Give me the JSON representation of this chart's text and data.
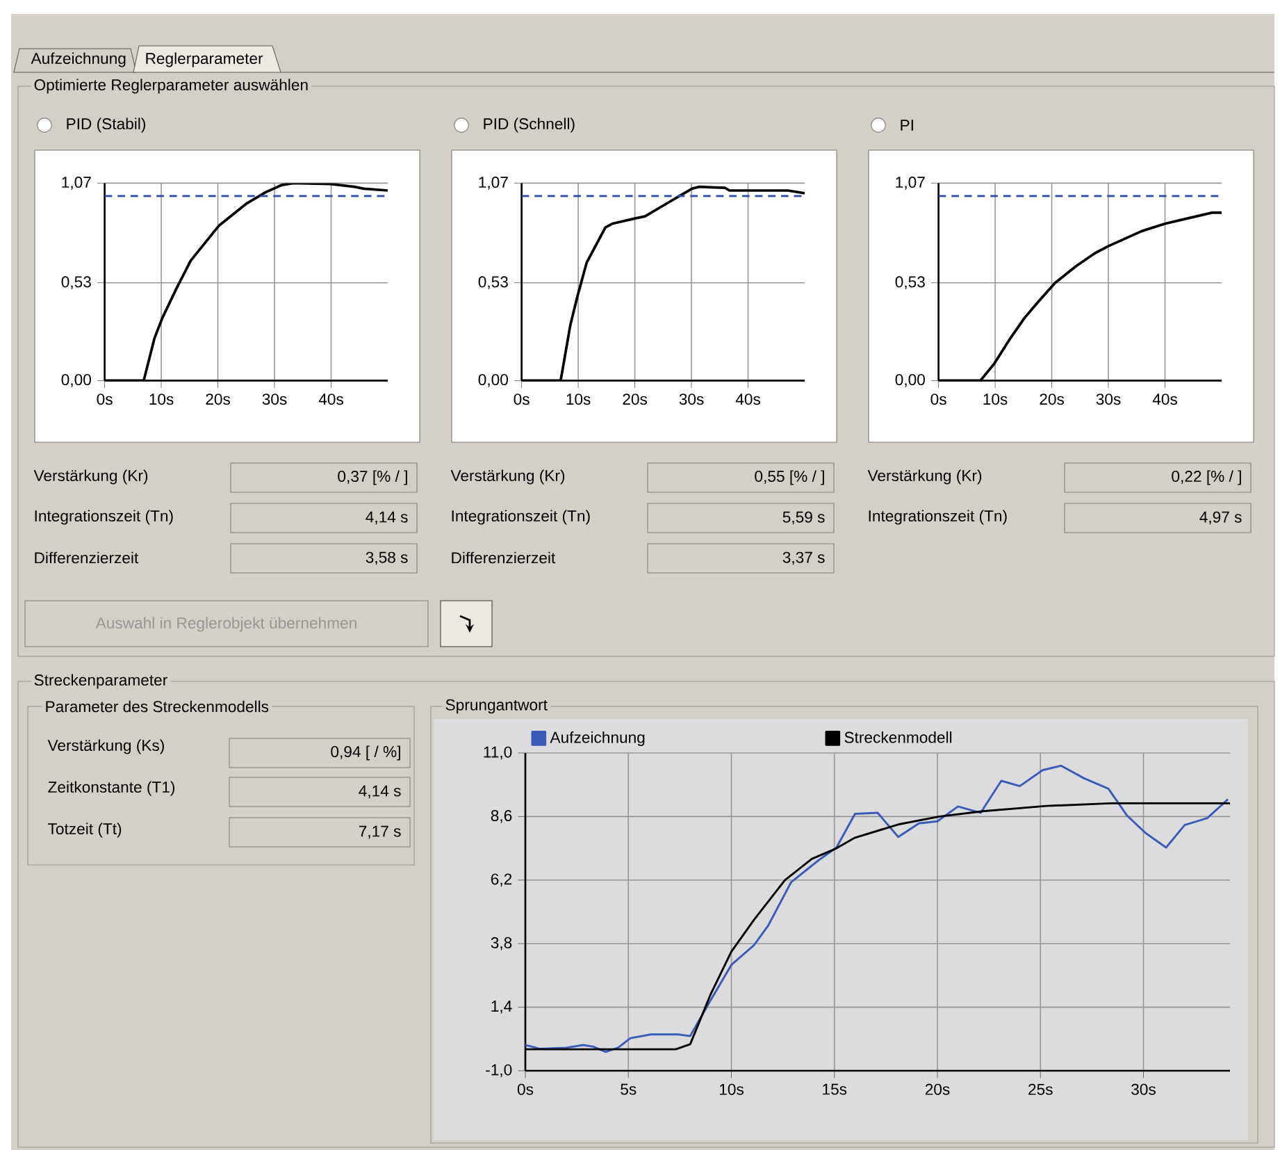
{
  "chart_data": [
    {
      "type": "line",
      "title": "PID (Stabil)",
      "xlim": [
        0,
        50
      ],
      "xticks": [
        {
          "value": 0,
          "label": "0s"
        },
        {
          "value": 10,
          "label": "10s"
        },
        {
          "value": 20,
          "label": "20s"
        },
        {
          "value": 30,
          "label": "30s"
        },
        {
          "value": 40,
          "label": "40s"
        }
      ],
      "ylim": [
        0,
        1.07
      ],
      "yticks": [
        {
          "value": 0,
          "label": "0,00"
        },
        {
          "value": 0.53,
          "label": "0,53"
        },
        {
          "value": 1.07,
          "label": "1,07"
        }
      ],
      "grid": true,
      "ref_lines": [
        {
          "axis": "y",
          "value": 1.0,
          "color": "#2e4ea8",
          "line_style": "dashed"
        }
      ],
      "series": [
        {
          "color": "#000000",
          "x": [
            0,
            6.9,
            8.8,
            10.2,
            12.7,
            15.2,
            20.2,
            25.1,
            28.4,
            31.3,
            33.4,
            39.9,
            44.1,
            45.8,
            50
          ],
          "values": [
            0,
            0,
            0.23,
            0.34,
            0.5,
            0.65,
            0.84,
            0.96,
            1.02,
            1.06,
            1.07,
            1.065,
            1.05,
            1.04,
            1.03
          ]
        }
      ],
      "annotations": [
        "Verstärkung (Kr)",
        "0,37  [% / ]",
        "Integrationszeit (Tn)",
        "4,14  s",
        "Differenzierzeit",
        "3,58  s"
      ]
    },
    {
      "type": "line",
      "title": "PID (Schnell)",
      "xlim": [
        0,
        50
      ],
      "xticks": [
        {
          "value": 0,
          "label": "0s"
        },
        {
          "value": 10,
          "label": "10s"
        },
        {
          "value": 20,
          "label": "20s"
        },
        {
          "value": 30,
          "label": "30s"
        },
        {
          "value": 40,
          "label": "40s"
        }
      ],
      "ylim": [
        0,
        1.07
      ],
      "yticks": [
        {
          "value": 0,
          "label": "0,00"
        },
        {
          "value": 0.53,
          "label": "0,53"
        },
        {
          "value": 1.07,
          "label": "1,07"
        }
      ],
      "grid": true,
      "ref_lines": [
        {
          "axis": "y",
          "value": 1.0,
          "color": "#2e4ea8",
          "line_style": "dashed"
        }
      ],
      "series": [
        {
          "color": "#000000",
          "x": [
            0,
            6.9,
            8.6,
            9.8,
            11.5,
            14.8,
            16.0,
            20.2,
            21.8,
            25.1,
            28.4,
            30.1,
            31.3,
            35.9,
            36.7,
            47,
            50
          ],
          "values": [
            0,
            0,
            0.3,
            0.45,
            0.64,
            0.83,
            0.85,
            0.88,
            0.89,
            0.95,
            1.01,
            1.04,
            1.05,
            1.045,
            1.03,
            1.03,
            1.015
          ]
        }
      ],
      "annotations": [
        "Verstärkung (Kr)",
        "0,55  [% / ]",
        "Integrationszeit (Tn)",
        "5,59  s",
        "Differenzierzeit",
        "3,37  s"
      ]
    },
    {
      "type": "line",
      "title": "PI",
      "xlim": [
        0,
        50
      ],
      "xticks": [
        {
          "value": 0,
          "label": "0s"
        },
        {
          "value": 10,
          "label": "10s"
        },
        {
          "value": 20,
          "label": "20s"
        },
        {
          "value": 30,
          "label": "30s"
        },
        {
          "value": 40,
          "label": "40s"
        }
      ],
      "ylim": [
        0,
        1.07
      ],
      "yticks": [
        {
          "value": 0,
          "label": "0,00"
        },
        {
          "value": 0.53,
          "label": "0,53"
        },
        {
          "value": 1.07,
          "label": "1,07"
        }
      ],
      "grid": true,
      "ref_lines": [
        {
          "axis": "y",
          "value": 1.0,
          "color": "#2e4ea8",
          "line_style": "dashed"
        }
      ],
      "series": [
        {
          "color": "#000000",
          "x": [
            0,
            7.4,
            9.8,
            12.7,
            15.2,
            17.7,
            20.6,
            24.3,
            27.6,
            30.1,
            35.9,
            40,
            44.1,
            48.3,
            50
          ],
          "values": [
            0,
            0,
            0.09,
            0.23,
            0.34,
            0.43,
            0.53,
            0.62,
            0.69,
            0.73,
            0.81,
            0.85,
            0.88,
            0.91,
            0.91
          ]
        }
      ],
      "annotations": [
        "Verstärkung (Kr)",
        "0,22  [% / ]",
        "Integrationszeit (Tn)",
        "4,97  s"
      ]
    },
    {
      "type": "line",
      "title": "Sprungantwort",
      "xlim": [
        0,
        34.2
      ],
      "xticks": [
        {
          "value": 0,
          "label": "0s"
        },
        {
          "value": 5,
          "label": "5s"
        },
        {
          "value": 10,
          "label": "10s"
        },
        {
          "value": 15,
          "label": "15s"
        },
        {
          "value": 20,
          "label": "20s"
        },
        {
          "value": 25,
          "label": "25s"
        },
        {
          "value": 30,
          "label": "30s"
        }
      ],
      "ylim": [
        -1,
        11
      ],
      "yticks": [
        {
          "value": -1,
          "label": "-1,0"
        },
        {
          "value": 1.4,
          "label": "1,4"
        },
        {
          "value": 3.8,
          "label": "3,8"
        },
        {
          "value": 6.2,
          "label": "6,2"
        },
        {
          "value": 8.6,
          "label": "8,6"
        },
        {
          "value": 11,
          "label": "11,0"
        }
      ],
      "grid": true,
      "legend": "top",
      "series": [
        {
          "name": "Aufzeichnung",
          "color": "#3a5cb8",
          "x": [
            0,
            0.7,
            2.0,
            2.8,
            3.3,
            3.9,
            4.5,
            5.1,
            6.1,
            7.4,
            8.0,
            9.0,
            10.0,
            11.1,
            11.8,
            12.9,
            14.2,
            15.1,
            16.0,
            17.1,
            18.1,
            19.1,
            20.0,
            21.0,
            22.1,
            23.1,
            24.0,
            25.1,
            26.0,
            27.1,
            28.3,
            29.2,
            30.1,
            31.1,
            32.0,
            33.1,
            34.1
          ],
          "values": [
            -0.03,
            -0.17,
            -0.13,
            -0.03,
            -0.09,
            -0.29,
            -0.13,
            0.23,
            0.37,
            0.37,
            0.31,
            1.67,
            3.0,
            3.74,
            4.5,
            6.12,
            6.93,
            7.43,
            8.7,
            8.74,
            7.83,
            8.34,
            8.42,
            8.98,
            8.74,
            9.95,
            9.75,
            10.35,
            10.52,
            10.05,
            9.65,
            8.64,
            7.98,
            7.43,
            8.28,
            8.54,
            9.25
          ]
        },
        {
          "name": "Streckenmodell",
          "color": "#000000",
          "x": [
            0,
            7.3,
            8.0,
            9.0,
            10.0,
            11.1,
            12.6,
            13.9,
            15.1,
            16.0,
            18.1,
            20.1,
            22.2,
            25.3,
            28.4,
            34.2
          ],
          "values": [
            -0.19,
            -0.19,
            0.0,
            1.9,
            3.5,
            4.7,
            6.2,
            7.0,
            7.4,
            7.8,
            8.3,
            8.6,
            8.8,
            9.0,
            9.1,
            9.1
          ]
        }
      ]
    },
    {
      "type": "other",
      "annotations": [
        "Aufzeichnung",
        "Reglerparameter",
        "Optimierte Reglerparameter auswählen",
        "Auswahl in Reglerobjekt übernehmen",
        "Streckenparameter",
        "Parameter des Streckenmodells",
        "Verstärkung (Ks)",
        "0,94  [ / %]",
        "Zeitkonstante (T1)",
        "4,14  s",
        "Totzeit (Tt)",
        "7,17  s"
      ]
    }
  ]
}
